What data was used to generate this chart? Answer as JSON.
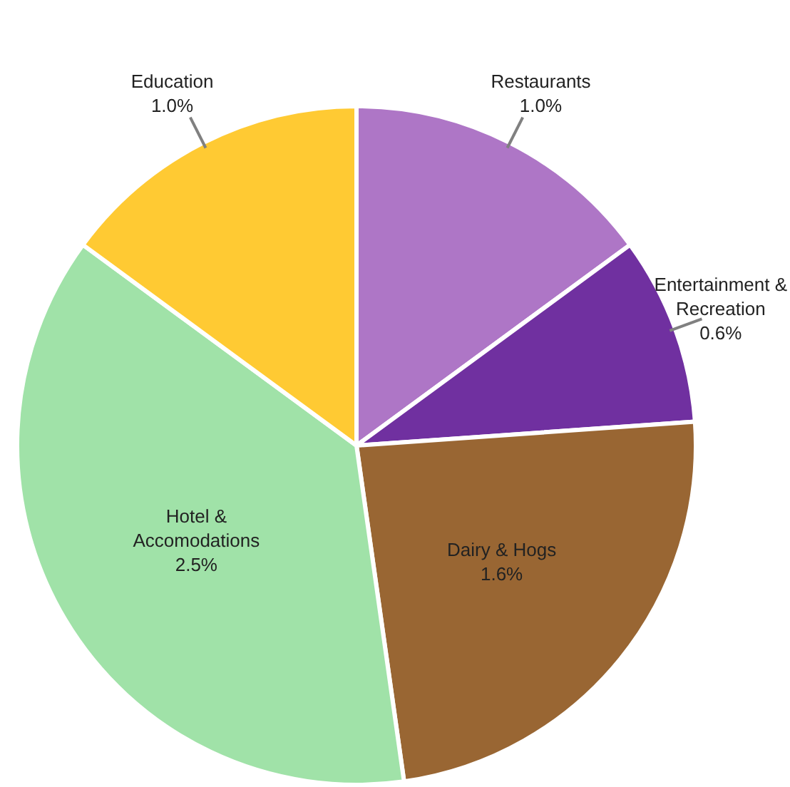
{
  "chart_data": {
    "type": "pie",
    "categories": [
      "Restaurants",
      "Entertainment & Recreation",
      "Dairy & Hogs",
      "Hotel & Accomodations",
      "Education"
    ],
    "values": [
      1.0,
      0.6,
      1.6,
      2.5,
      1.0
    ],
    "value_labels": [
      "1.0%",
      "0.6%",
      "1.6%",
      "2.5%",
      "1.0%"
    ],
    "colors": [
      "#ae76c6",
      "#7030a0",
      "#996633",
      "#a0e2a8",
      "#ffca33"
    ],
    "legend": false
  }
}
